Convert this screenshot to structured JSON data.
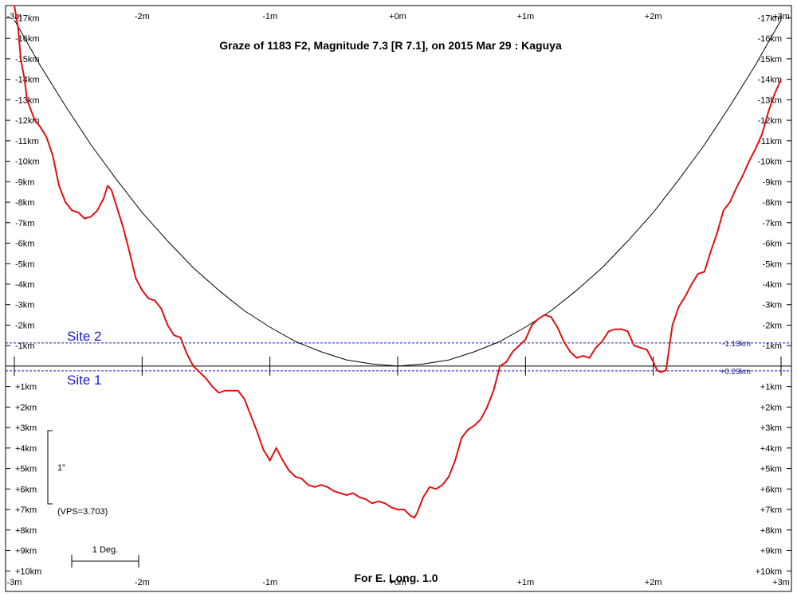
{
  "chart_data": {
    "type": "line",
    "title": "Graze of  1183 F2,  Magnitude 7.3 [R 7.1],  on 2015 Mar 29  :  Kaguya",
    "footer": "For E. Long. 1.0",
    "xlim": [
      -3,
      3
    ],
    "ylim": [
      -17.6,
      11.0
    ],
    "x_ticks": [
      -3,
      -2,
      -1,
      0,
      1,
      2,
      3
    ],
    "x_tick_labels": [
      "-3m",
      "-2m",
      "-1m",
      "+0m",
      "+1m",
      "+2m",
      "+3m"
    ],
    "y_ticks": [
      -17,
      -16,
      -15,
      -14,
      -13,
      -12,
      -11,
      -10,
      -9,
      -8,
      -7,
      -6,
      -5,
      -4,
      -3,
      -2,
      -1,
      1,
      2,
      3,
      4,
      5,
      6,
      7,
      8,
      9,
      10
    ],
    "y_tick_labels": [
      "-17km",
      "-16km",
      "-15km",
      "-14km",
      "-13km",
      "-12km",
      "-11km",
      "-10km",
      "-9km",
      "-8km",
      "-7km",
      "-6km",
      "-5km",
      "-4km",
      "-3km",
      "-2km",
      "-1km",
      "+1km",
      "+2km",
      "+3km",
      "+4km",
      "+5km",
      "+6km",
      "+7km",
      "+8km",
      "+9km",
      "+10km"
    ],
    "grid": false,
    "lunar_limb": {
      "color": "#e01010",
      "x": [
        -3.0,
        -2.97,
        -2.95,
        -2.92,
        -2.9,
        -2.87,
        -2.84,
        -2.8,
        -2.75,
        -2.7,
        -2.65,
        -2.6,
        -2.55,
        -2.5,
        -2.45,
        -2.4,
        -2.35,
        -2.3,
        -2.27,
        -2.24,
        -2.2,
        -2.15,
        -2.1,
        -2.05,
        -2.0,
        -1.95,
        -1.9,
        -1.85,
        -1.8,
        -1.75,
        -1.7,
        -1.65,
        -1.6,
        -1.55,
        -1.5,
        -1.45,
        -1.4,
        -1.35,
        -1.3,
        -1.25,
        -1.2,
        -1.15,
        -1.1,
        -1.05,
        -1.0,
        -0.95,
        -0.9,
        -0.85,
        -0.8,
        -0.75,
        -0.7,
        -0.65,
        -0.6,
        -0.55,
        -0.5,
        -0.45,
        -0.4,
        -0.35,
        -0.3,
        -0.25,
        -0.2,
        -0.15,
        -0.1,
        -0.05,
        0.0,
        0.05,
        0.1,
        0.13,
        0.15,
        0.2,
        0.25,
        0.3,
        0.35,
        0.4,
        0.45,
        0.5,
        0.55,
        0.6,
        0.65,
        0.7,
        0.75,
        0.8,
        0.85,
        0.9,
        0.95,
        1.0,
        1.05,
        1.1,
        1.15,
        1.2,
        1.25,
        1.3,
        1.35,
        1.4,
        1.45,
        1.5,
        1.55,
        1.6,
        1.65,
        1.7,
        1.75,
        1.8,
        1.85,
        1.9,
        1.95,
        2.0,
        2.03,
        2.06,
        2.1,
        2.15,
        2.2,
        2.25,
        2.3,
        2.35,
        2.4,
        2.45,
        2.5,
        2.55,
        2.6,
        2.65,
        2.7,
        2.75,
        2.8,
        2.85,
        2.9,
        2.95,
        3.0
      ],
      "y": [
        -17.6,
        -16.5,
        -15.0,
        -14.0,
        -13.0,
        -12.5,
        -12.0,
        -11.7,
        -11.2,
        -10.3,
        -8.8,
        -8.0,
        -7.6,
        -7.5,
        -7.2,
        -7.3,
        -7.6,
        -8.2,
        -8.8,
        -8.6,
        -7.8,
        -6.8,
        -5.6,
        -4.3,
        -3.7,
        -3.3,
        -3.2,
        -2.8,
        -2.0,
        -1.5,
        -1.4,
        -0.6,
        0.0,
        0.3,
        0.6,
        1.0,
        1.3,
        1.2,
        1.2,
        1.2,
        1.6,
        2.4,
        3.2,
        4.1,
        4.6,
        4.0,
        4.6,
        5.1,
        5.4,
        5.5,
        5.8,
        5.9,
        5.8,
        5.9,
        6.1,
        6.2,
        6.3,
        6.2,
        6.4,
        6.5,
        6.7,
        6.6,
        6.7,
        6.9,
        7.0,
        7.0,
        7.3,
        7.4,
        7.2,
        6.4,
        5.9,
        6.0,
        5.8,
        5.4,
        4.6,
        3.5,
        3.1,
        2.9,
        2.6,
        2.0,
        1.2,
        0.0,
        -0.2,
        -0.7,
        -1.0,
        -1.3,
        -2.0,
        -2.3,
        -2.5,
        -2.4,
        -1.9,
        -1.2,
        -0.7,
        -0.4,
        -0.5,
        -0.4,
        -0.9,
        -1.2,
        -1.7,
        -1.8,
        -1.8,
        -1.7,
        -1.0,
        -0.9,
        -0.8,
        -0.2,
        0.2,
        0.3,
        0.2,
        -2.0,
        -2.9,
        -3.4,
        -4.0,
        -4.5,
        -4.6,
        -5.6,
        -6.5,
        -7.6,
        -8.0,
        -8.7,
        -9.3,
        -10.0,
        -10.6,
        -11.3,
        -12.4,
        -13.3,
        -14.0
      ]
    },
    "star_path": {
      "color": "#000000",
      "x": [
        -3.0,
        -2.8,
        -2.6,
        -2.4,
        -2.2,
        -2.0,
        -1.8,
        -1.6,
        -1.4,
        -1.2,
        -1.0,
        -0.8,
        -0.6,
        -0.4,
        -0.2,
        0.0,
        0.2,
        0.4,
        0.6,
        0.8,
        1.0,
        1.2,
        1.4,
        1.6,
        1.8,
        2.0,
        2.2,
        2.4,
        2.6,
        2.8,
        3.0
      ],
      "y": [
        -16.9,
        -14.7,
        -12.7,
        -10.8,
        -9.1,
        -7.5,
        -6.1,
        -4.8,
        -3.7,
        -2.7,
        -1.9,
        -1.2,
        -0.7,
        -0.3,
        -0.1,
        0.0,
        -0.1,
        -0.3,
        -0.7,
        -1.2,
        -1.9,
        -2.7,
        -3.7,
        -4.8,
        -6.1,
        -7.5,
        -9.1,
        -10.8,
        -12.7,
        -14.7,
        -16.9
      ]
    },
    "sites": [
      {
        "label": "Site 2",
        "value_label": "-1.13km",
        "y": -1.13,
        "color": "#1a1ad0"
      },
      {
        "label": "Site 1",
        "value_label": "+0.23km",
        "y": 0.23,
        "color": "#1a1ad0"
      }
    ],
    "center_line_y": 0,
    "vertical_scale": {
      "label": "1\"",
      "note": "(VPS=3.703)"
    },
    "horizontal_scale": {
      "label": "1 Deg."
    }
  }
}
